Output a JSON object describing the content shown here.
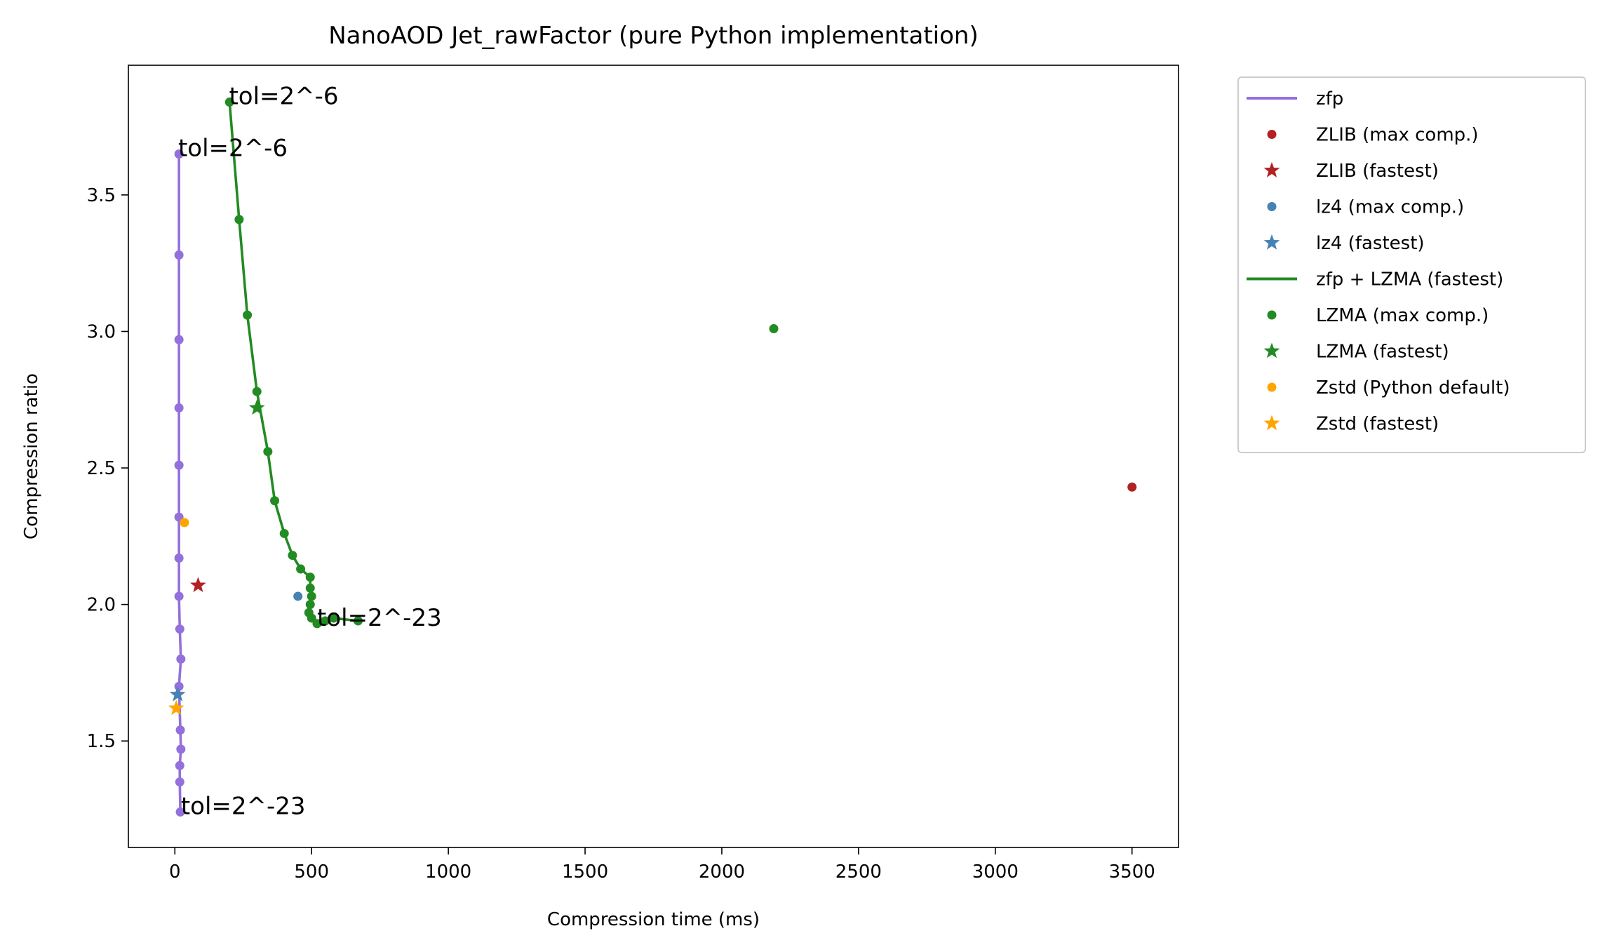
{
  "chart_data": {
    "type": "scatter",
    "title": "NanoAOD Jet_rawFactor (pure Python implementation)",
    "xlabel": "Compression time (ms)",
    "ylabel": "Compression ratio",
    "xlim": [
      -170,
      3670
    ],
    "ylim": [
      1.11,
      3.975
    ],
    "xticks": [
      0,
      500,
      1000,
      1500,
      2000,
      2500,
      3000,
      3500
    ],
    "yticks": [
      1.5,
      2.0,
      2.5,
      3.0,
      3.5
    ],
    "xtick_labels": [
      "0",
      "500",
      "1000",
      "1500",
      "2000",
      "2500",
      "3000",
      "3500"
    ],
    "ytick_labels": [
      "1.5",
      "2.0",
      "2.5",
      "3.0",
      "3.5"
    ],
    "grid": false,
    "legend_position": "outside-right",
    "series": [
      {
        "name": "zfp",
        "kind": "line-markers",
        "color": "#9370DB",
        "x": [
          15,
          15,
          15,
          15,
          15,
          15,
          15,
          15,
          18,
          22,
          15,
          20,
          22,
          18,
          18,
          20
        ],
        "y": [
          3.65,
          3.28,
          2.97,
          2.72,
          2.51,
          2.32,
          2.17,
          2.03,
          1.91,
          1.8,
          1.7,
          1.54,
          1.47,
          1.41,
          1.35,
          1.24
        ]
      },
      {
        "name": "ZLIB (max comp.)",
        "kind": "dot",
        "color": "#B22222",
        "x": [
          3500
        ],
        "y": [
          2.43
        ]
      },
      {
        "name": "ZLIB (fastest)",
        "kind": "star",
        "color": "#B22222",
        "x": [
          85
        ],
        "y": [
          2.07
        ]
      },
      {
        "name": "lz4 (max comp.)",
        "kind": "dot",
        "color": "#4682B4",
        "x": [
          450
        ],
        "y": [
          2.03
        ]
      },
      {
        "name": "lz4 (fastest)",
        "kind": "star",
        "color": "#4682B4",
        "x": [
          10
        ],
        "y": [
          1.67
        ]
      },
      {
        "name": "zfp + LZMA (fastest)",
        "kind": "line-markers",
        "color": "#228B22",
        "x": [
          200,
          235,
          265,
          300,
          340,
          365,
          400,
          430,
          460,
          495,
          495,
          500,
          495,
          490,
          500,
          520,
          550,
          580,
          670
        ],
        "y": [
          3.84,
          3.41,
          3.06,
          2.78,
          2.56,
          2.38,
          2.26,
          2.18,
          2.13,
          2.1,
          2.06,
          2.03,
          2.0,
          1.97,
          1.95,
          1.93,
          1.94,
          1.95,
          1.94
        ]
      },
      {
        "name": "LZMA (max comp.)",
        "kind": "dot",
        "color": "#228B22",
        "x": [
          2190
        ],
        "y": [
          3.01
        ]
      },
      {
        "name": "LZMA (fastest)",
        "kind": "star",
        "color": "#228B22",
        "x": [
          300
        ],
        "y": [
          2.72
        ]
      },
      {
        "name": "Zstd (Python default)",
        "kind": "dot",
        "color": "#FFA500",
        "x": [
          35
        ],
        "y": [
          2.3
        ]
      },
      {
        "name": "Zstd (fastest)",
        "kind": "star",
        "color": "#FFA500",
        "x": [
          5
        ],
        "y": [
          1.62
        ]
      }
    ],
    "annotations": [
      {
        "text": "tol=2^-6",
        "x": 198,
        "y": 3.84
      },
      {
        "text": "tol=2^-6",
        "x": 12,
        "y": 3.65
      },
      {
        "text": "tol=2^-23",
        "x": 520,
        "y": 1.93
      },
      {
        "text": "tol=2^-23",
        "x": 22,
        "y": 1.24
      }
    ]
  }
}
